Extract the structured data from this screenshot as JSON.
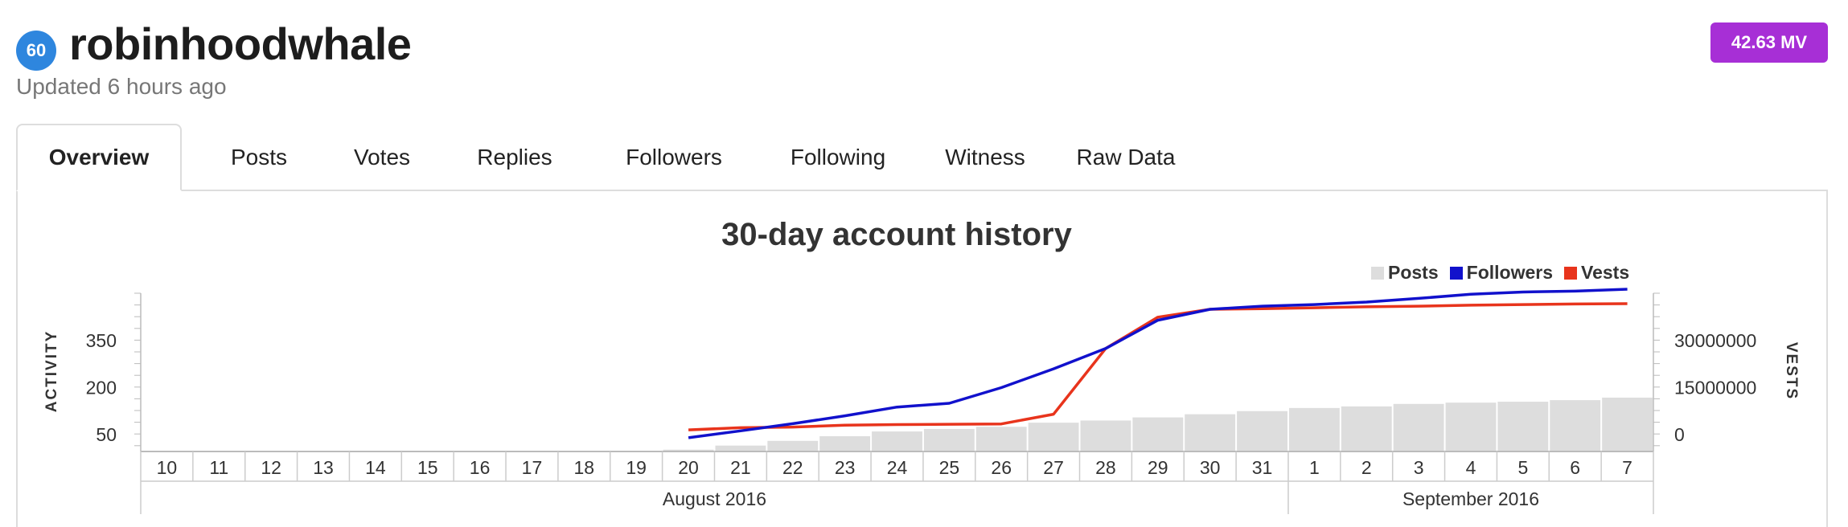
{
  "profile": {
    "reputation": "60",
    "username": "robinhoodwhale",
    "updated": "Updated 6 hours ago",
    "mv_badge": "42.63 MV"
  },
  "tabs": [
    {
      "label": "Overview",
      "active": true
    },
    {
      "label": "Posts"
    },
    {
      "label": "Votes"
    },
    {
      "label": "Replies"
    },
    {
      "label": "Followers"
    },
    {
      "label": "Following"
    },
    {
      "label": "Witness"
    },
    {
      "label": "Raw Data"
    }
  ],
  "colors": {
    "accent_badge": "#a72fd6",
    "reputation": "#2e86de",
    "posts": "#dddddd",
    "followers": "#1111cc",
    "vests": "#e8341c"
  },
  "chart_data": {
    "type": "bar+line",
    "title": "30-day account history",
    "legend": [
      "Posts",
      "Followers",
      "Vests"
    ],
    "legend_position": "top-right",
    "y_left_label": "ACTIVITY",
    "y_left_ticks": [
      50,
      200,
      350
    ],
    "y_right_label": "VESTS",
    "y_right_ticks": [
      0,
      15000000,
      30000000
    ],
    "y_right_tick_labels": [
      "0",
      "15000000",
      "30000000"
    ],
    "categories": [
      "10",
      "11",
      "12",
      "13",
      "14",
      "15",
      "16",
      "17",
      "18",
      "19",
      "20",
      "21",
      "22",
      "23",
      "24",
      "25",
      "26",
      "27",
      "28",
      "29",
      "30",
      "31",
      "1",
      "2",
      "3",
      "4",
      "5",
      "6",
      "7"
    ],
    "months": [
      {
        "label": "August 2016",
        "from": 0,
        "to": 21
      },
      {
        "label": "September 2016",
        "from": 22,
        "to": 28
      }
    ],
    "series": [
      {
        "name": "Posts",
        "type": "bar",
        "axis": "left",
        "values": [
          null,
          null,
          null,
          null,
          null,
          null,
          null,
          null,
          null,
          null,
          2,
          15,
          30,
          45,
          60,
          68,
          75,
          88,
          95,
          105,
          115,
          125,
          135,
          140,
          148,
          152,
          155,
          160,
          168
        ]
      },
      {
        "name": "Followers",
        "type": "line",
        "axis": "left",
        "values": [
          null,
          null,
          null,
          null,
          null,
          null,
          null,
          null,
          null,
          null,
          40,
          62,
          85,
          110,
          138,
          150,
          200,
          260,
          325,
          415,
          450,
          460,
          465,
          473,
          485,
          498,
          505,
          508,
          514
        ]
      },
      {
        "name": "Vests",
        "type": "line",
        "axis": "right",
        "values": [
          null,
          null,
          null,
          null,
          null,
          null,
          null,
          null,
          null,
          null,
          1500000,
          2200000,
          2400000,
          3000000,
          3200000,
          3300000,
          3400000,
          6500000,
          27500000,
          37500000,
          40000000,
          40200000,
          40500000,
          40800000,
          41000000,
          41300000,
          41500000,
          41700000,
          41800000
        ]
      }
    ]
  }
}
